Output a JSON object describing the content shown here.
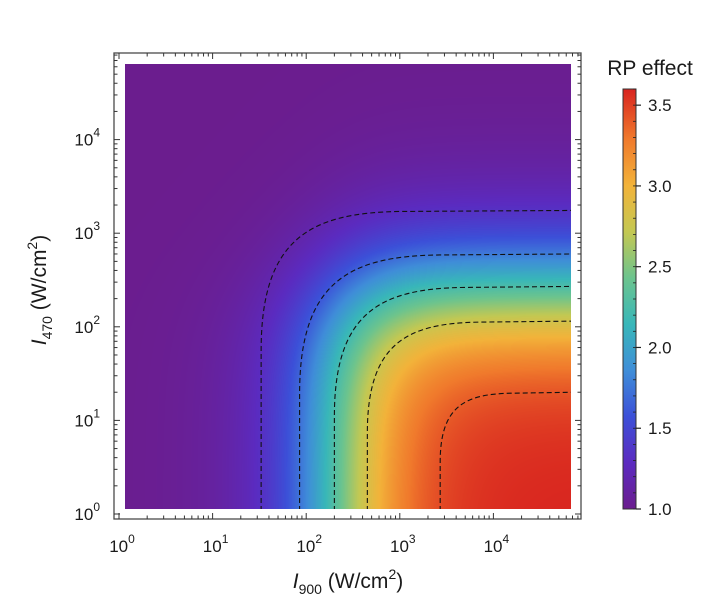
{
  "chart_data": {
    "type": "heatmap",
    "title": "",
    "x_axis": {
      "label": {
        "symbol": "I",
        "subscript": "900",
        "text": " (W/cm",
        "superscript": "2",
        "close": ")"
      },
      "scale": "log",
      "range": [
        1,
        60000
      ],
      "ticks": [
        {
          "base": "10",
          "exp": "0",
          "value": 1
        },
        {
          "base": "10",
          "exp": "1",
          "value": 10
        },
        {
          "base": "10",
          "exp": "2",
          "value": 100
        },
        {
          "base": "10",
          "exp": "3",
          "value": 1000
        },
        {
          "base": "10",
          "exp": "4",
          "value": 10000
        }
      ]
    },
    "y_axis": {
      "label": {
        "symbol": "I",
        "subscript": "470",
        "text": " (W/cm",
        "superscript": "2",
        "close": ")"
      },
      "scale": "log",
      "range": [
        1,
        60000
      ],
      "ticks": [
        {
          "base": "10",
          "exp": "0",
          "value": 1
        },
        {
          "base": "10",
          "exp": "1",
          "value": 10
        },
        {
          "base": "10",
          "exp": "2",
          "value": 100
        },
        {
          "base": "10",
          "exp": "3",
          "value": 1000
        },
        {
          "base": "10",
          "exp": "4",
          "value": 10000
        }
      ]
    },
    "colorbar": {
      "title": "RP effect",
      "range": [
        1.0,
        3.6
      ],
      "ticks": [
        "1.0",
        "1.5",
        "2.0",
        "2.5",
        "3.0",
        "3.5"
      ],
      "tick_values": [
        1.0,
        1.5,
        2.0,
        2.5,
        3.0,
        3.5
      ],
      "colormap": "rainbow (purple to red)"
    },
    "contours": {
      "style": "dashed black",
      "levels": [
        1.5,
        2.0,
        2.5,
        3.0,
        3.5
      ],
      "x_at_bottom": [
        33,
        85,
        200,
        450,
        2700
      ],
      "y_at_right": [
        1750,
        600,
        270,
        115,
        20
      ]
    },
    "surface": {
      "min_value": 1.0,
      "max_value": 3.6,
      "max_location": "bottom-right (high I900, low I470)"
    }
  }
}
